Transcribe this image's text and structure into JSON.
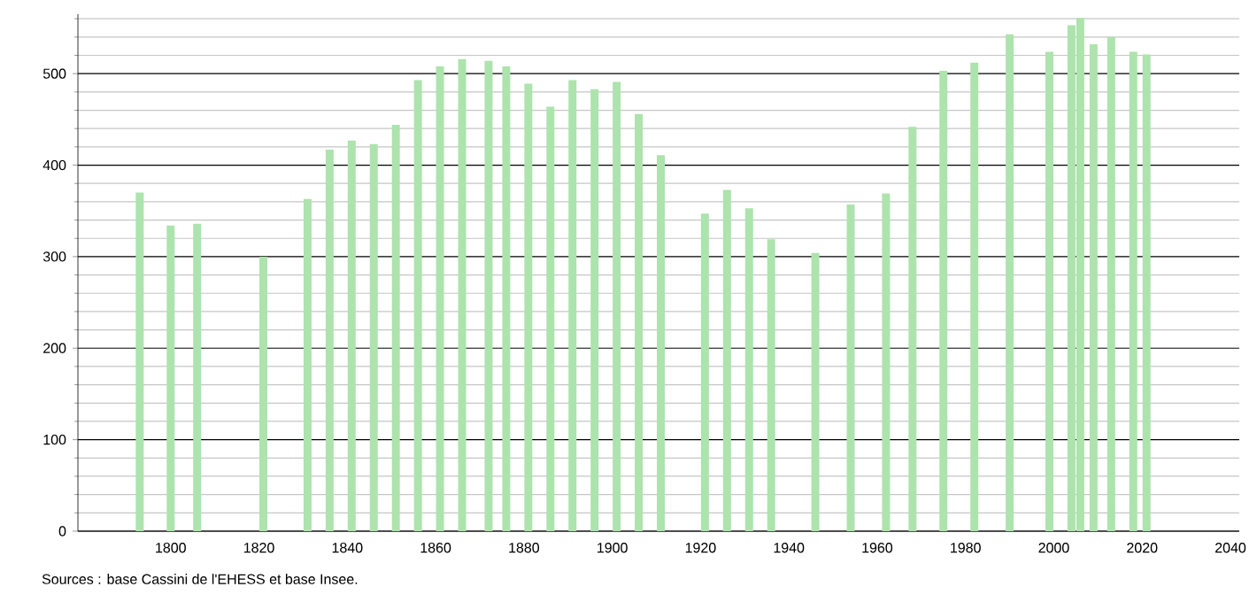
{
  "chart_data": {
    "type": "bar",
    "color": "#ade3ad",
    "x": [
      1793,
      1800,
      1806,
      1821,
      1831,
      1836,
      1841,
      1846,
      1851,
      1856,
      1861,
      1866,
      1872,
      1876,
      1881,
      1886,
      1891,
      1896,
      1901,
      1906,
      1911,
      1921,
      1926,
      1931,
      1936,
      1946,
      1954,
      1962,
      1968,
      1975,
      1982,
      1990,
      1999,
      2004,
      2006,
      2009,
      2013,
      2018,
      2021
    ],
    "values": [
      370,
      334,
      336,
      300,
      363,
      417,
      427,
      423,
      444,
      493,
      508,
      516,
      514,
      508,
      489,
      464,
      493,
      483,
      491,
      456,
      411,
      347,
      373,
      353,
      319,
      304,
      357,
      369,
      442,
      503,
      512,
      543,
      524,
      553,
      561,
      532,
      540,
      524,
      521
    ],
    "xlim": [
      1779,
      2042
    ],
    "ylim": [
      0,
      565
    ],
    "xticks": [
      1800,
      1820,
      1840,
      1860,
      1880,
      1900,
      1920,
      1940,
      1960,
      1980,
      2000,
      2020,
      2040
    ],
    "yticks": [
      0,
      {
        "value": 20,
        "label": null
      },
      {
        "value": 40,
        "label": null
      },
      {
        "value": 60,
        "label": null
      },
      {
        "value": 80,
        "label": null
      },
      100,
      {
        "value": 120,
        "label": null
      },
      {
        "value": 140,
        "label": null
      },
      {
        "value": 160,
        "label": null
      },
      {
        "value": 180,
        "label": null
      },
      200,
      {
        "value": 220,
        "label": null
      },
      {
        "value": 240,
        "label": null
      },
      {
        "value": 260,
        "label": null
      },
      {
        "value": 280,
        "label": null
      },
      300,
      {
        "value": 320,
        "label": null
      },
      {
        "value": 340,
        "label": null
      },
      {
        "value": 360,
        "label": null
      },
      {
        "value": 380,
        "label": null
      },
      400,
      {
        "value": 420,
        "label": null
      },
      {
        "value": 440,
        "label": null
      },
      {
        "value": 460,
        "label": null
      },
      {
        "value": 480,
        "label": null
      },
      500,
      {
        "value": 520,
        "label": null
      },
      {
        "value": 540,
        "label": null
      },
      {
        "value": 560,
        "label": null
      }
    ],
    "grid": "y",
    "annotations": [
      "Sources : base Cassini de l'EHESS et base Insee."
    ]
  }
}
